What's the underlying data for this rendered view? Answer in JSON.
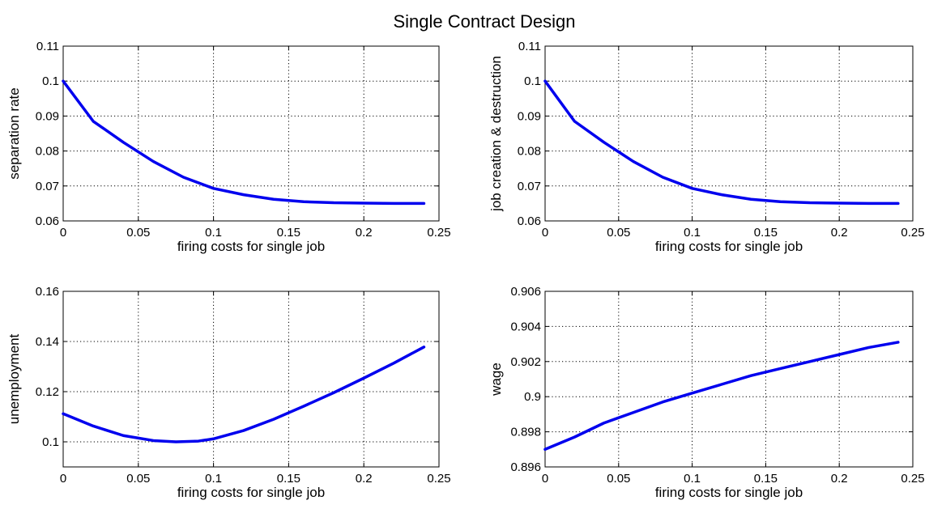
{
  "figure": {
    "title": "Single Contract Design"
  },
  "colors": {
    "line": "#0000ee",
    "grid": "#000000",
    "axis": "#000000"
  },
  "chart_data": [
    {
      "type": "line",
      "xlabel": "firing costs for single job",
      "ylabel": "separation rate",
      "xlim": [
        0,
        0.25
      ],
      "ylim": [
        0.06,
        0.11
      ],
      "xticks": [
        0,
        0.05,
        0.1,
        0.15,
        0.2,
        0.25
      ],
      "xtick_labels": [
        "0",
        "0.05",
        "0.1",
        "0.15",
        "0.2",
        "0.25"
      ],
      "yticks": [
        0.06,
        0.07,
        0.08,
        0.09,
        0.1,
        0.11
      ],
      "ytick_labels": [
        "0.06",
        "0.07",
        "0.08",
        "0.09",
        "0.1",
        "0.11"
      ],
      "grid": true,
      "x": [
        0,
        0.02,
        0.04,
        0.06,
        0.08,
        0.1,
        0.12,
        0.14,
        0.16,
        0.18,
        0.2,
        0.22,
        0.24
      ],
      "y": [
        0.1,
        0.0885,
        0.0825,
        0.077,
        0.0725,
        0.0693,
        0.0675,
        0.0662,
        0.0655,
        0.0652,
        0.0651,
        0.065,
        0.065
      ]
    },
    {
      "type": "line",
      "xlabel": "firing costs for single job",
      "ylabel": "job creation & destruction",
      "xlim": [
        0,
        0.25
      ],
      "ylim": [
        0.06,
        0.11
      ],
      "xticks": [
        0,
        0.05,
        0.1,
        0.15,
        0.2,
        0.25
      ],
      "xtick_labels": [
        "0",
        "0.05",
        "0.1",
        "0.15",
        "0.2",
        "0.25"
      ],
      "yticks": [
        0.06,
        0.07,
        0.08,
        0.09,
        0.1,
        0.11
      ],
      "ytick_labels": [
        "0.06",
        "0.07",
        "0.08",
        "0.09",
        "0.1",
        "0.11"
      ],
      "grid": true,
      "x": [
        0,
        0.02,
        0.04,
        0.06,
        0.08,
        0.1,
        0.12,
        0.14,
        0.16,
        0.18,
        0.2,
        0.22,
        0.24
      ],
      "y": [
        0.1,
        0.0885,
        0.0825,
        0.077,
        0.0725,
        0.0693,
        0.0675,
        0.0662,
        0.0655,
        0.0652,
        0.0651,
        0.065,
        0.065
      ]
    },
    {
      "type": "line",
      "xlabel": "firing costs for single job",
      "ylabel": "unemployment",
      "xlim": [
        0,
        0.25
      ],
      "ylim": [
        0.09,
        0.16
      ],
      "xticks": [
        0,
        0.05,
        0.1,
        0.15,
        0.2,
        0.25
      ],
      "xtick_labels": [
        "0",
        "0.05",
        "0.1",
        "0.15",
        "0.2",
        "0.25"
      ],
      "yticks": [
        0.1,
        0.12,
        0.14,
        0.16
      ],
      "ytick_labels": [
        "0.1",
        "0.12",
        "0.14",
        "0.16"
      ],
      "grid": true,
      "x": [
        0,
        0.02,
        0.04,
        0.06,
        0.075,
        0.09,
        0.1,
        0.12,
        0.14,
        0.16,
        0.18,
        0.2,
        0.22,
        0.24
      ],
      "y": [
        0.1112,
        0.1063,
        0.1025,
        0.1005,
        0.1,
        0.1003,
        0.1012,
        0.1045,
        0.109,
        0.1142,
        0.1196,
        0.1254,
        0.1314,
        0.1378
      ]
    },
    {
      "type": "line",
      "xlabel": "firing costs for single job",
      "ylabel": "wage",
      "xlim": [
        0,
        0.25
      ],
      "ylim": [
        0.896,
        0.906
      ],
      "xticks": [
        0,
        0.05,
        0.1,
        0.15,
        0.2,
        0.25
      ],
      "xtick_labels": [
        "0",
        "0.05",
        "0.1",
        "0.15",
        "0.2",
        "0.25"
      ],
      "yticks": [
        0.896,
        0.898,
        0.9,
        0.902,
        0.904,
        0.906
      ],
      "ytick_labels": [
        "0.896",
        "0.898",
        "0.9",
        "0.902",
        "0.904",
        "0.906"
      ],
      "grid": true,
      "x": [
        0,
        0.02,
        0.04,
        0.06,
        0.08,
        0.1,
        0.12,
        0.14,
        0.16,
        0.18,
        0.2,
        0.22,
        0.24
      ],
      "y": [
        0.897,
        0.8977,
        0.8985,
        0.8991,
        0.8997,
        0.9002,
        0.9007,
        0.9012,
        0.9016,
        0.902,
        0.9024,
        0.9028,
        0.9031
      ]
    }
  ]
}
